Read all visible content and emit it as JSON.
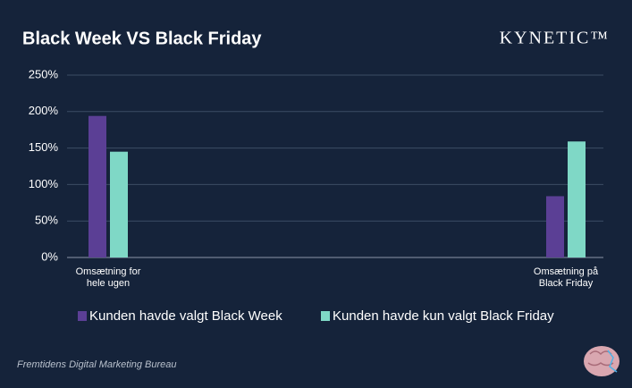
{
  "chart_data": {
    "type": "bar",
    "title": "Black Week VS Black Friday",
    "brand": "KYNETIC™",
    "footer": "Fremtidens Digital Marketing Bureau",
    "categories": [
      "Omsætning for hele ugen",
      "Omsætning på Black Friday"
    ],
    "series": [
      {
        "name": "Kunden havde valgt Black Week",
        "color": "#5b3f95",
        "values": [
          194,
          84
        ]
      },
      {
        "name": "Kunden havde kun valgt Black Friday",
        "color": "#7fd8c6",
        "values": [
          145,
          159
        ]
      }
    ],
    "ylim": [
      0,
      250
    ],
    "yticks": [
      {
        "value": 0,
        "label": "0%"
      },
      {
        "value": 50,
        "label": "50%"
      },
      {
        "value": 100,
        "label": "100%"
      },
      {
        "value": 150,
        "label": "150%"
      },
      {
        "value": 200,
        "label": "200%"
      },
      {
        "value": 250,
        "label": "250%"
      }
    ],
    "grid": true
  }
}
